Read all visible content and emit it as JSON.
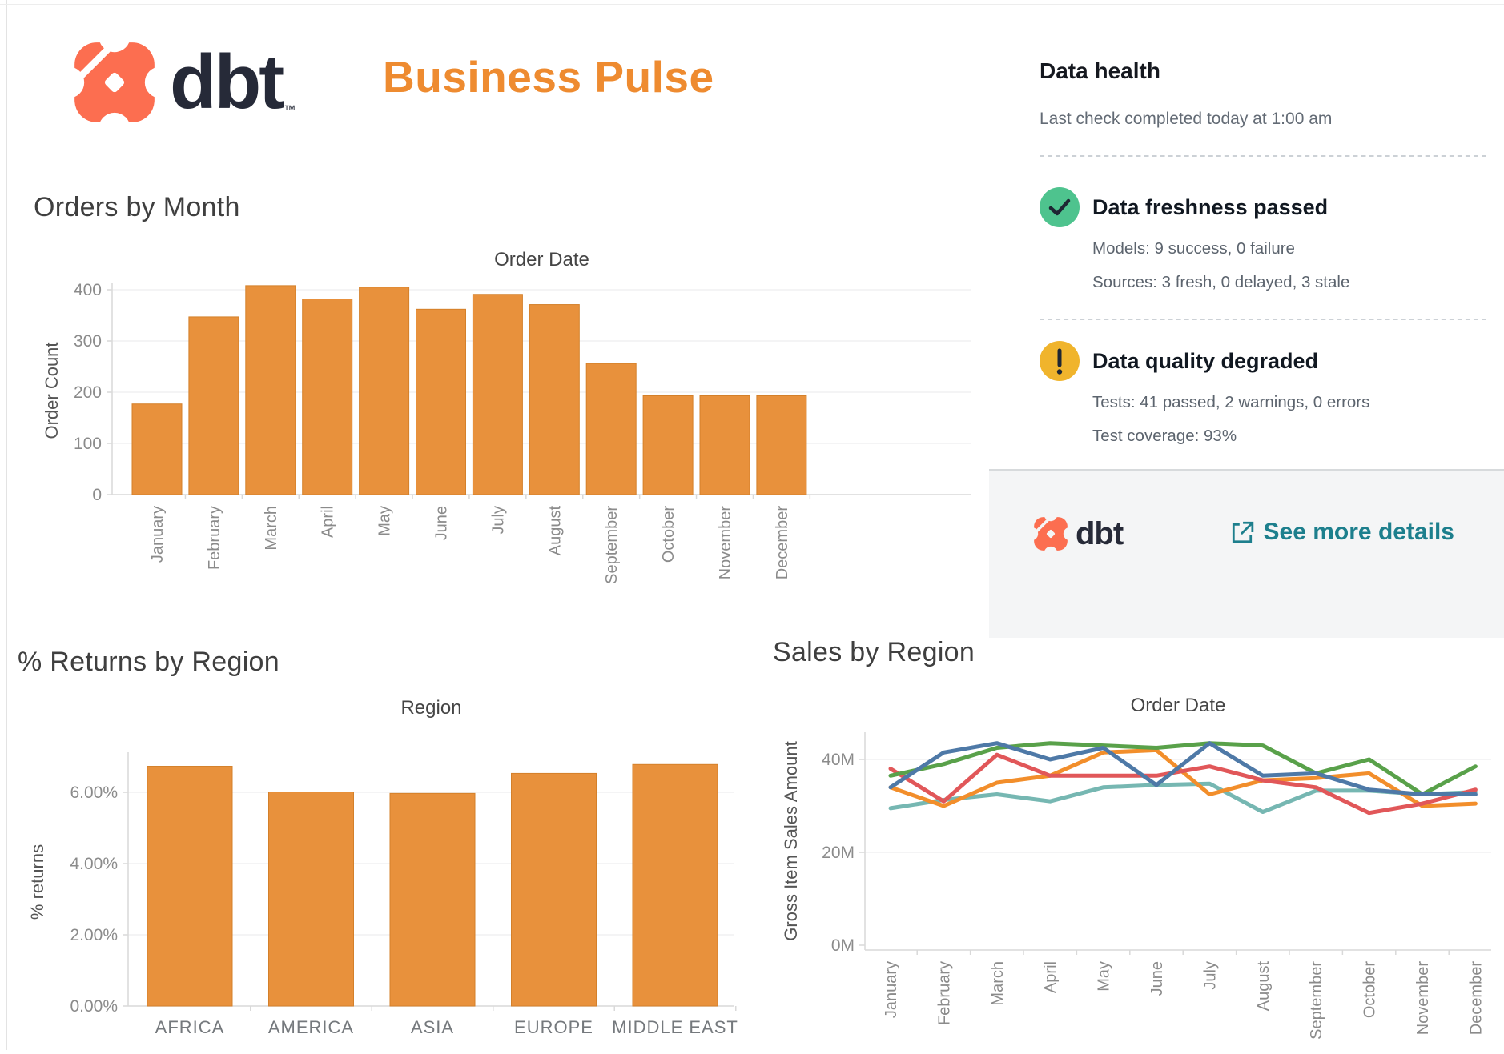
{
  "header": {
    "brand": "dbt",
    "trademark": "™",
    "title": "Business Pulse"
  },
  "data_health": {
    "heading": "Data health",
    "last_check": "Last check completed today at 1:00 am",
    "freshness_status": "Data freshness passed",
    "freshness_models": "Models: 9 success, 0 failure",
    "freshness_sources": "Sources: 3 fresh, 0 delayed, 3 stale",
    "quality_status": "Data quality degraded",
    "quality_tests": "Tests: 41 passed, 2 warnings, 0 errors",
    "quality_coverage": "Test coverage: 93%",
    "footer_brand": "dbt",
    "footer_link": "See more details"
  },
  "colors": {
    "brand_coral": "#FC6E50",
    "brand_navy": "#262A38",
    "accent_orange": "#EE8B30",
    "bar_orange": "#E8913C",
    "bar_stroke": "#D4802A",
    "success_green": "#4EC38E",
    "warning_yellow": "#F0B42C",
    "link_teal": "#1D7F8D",
    "icon_glyph_navy": "#1E2633"
  },
  "chart_data": [
    {
      "type": "bar",
      "title": "Orders by Month",
      "pane_label": "Order Date",
      "xlabel": "",
      "ylabel": "Order Count",
      "categories": [
        "January",
        "February",
        "March",
        "April",
        "May",
        "June",
        "July",
        "August",
        "September",
        "October",
        "November",
        "December"
      ],
      "values": [
        177,
        347,
        408,
        382,
        405,
        362,
        391,
        371,
        256,
        193,
        193,
        193
      ],
      "y_ticks": [
        0,
        100,
        200,
        300,
        400
      ],
      "y_tick_labels": [
        "0",
        "100",
        "200",
        "300",
        "400"
      ],
      "ylim": [
        0,
        412
      ],
      "grid": true,
      "legend_position": "none",
      "bar_color": "#E8913C"
    },
    {
      "type": "bar",
      "title": "% Returns by Region",
      "pane_label": "Region",
      "xlabel": "",
      "ylabel": "% returns",
      "categories": [
        "AFRICA",
        "AMERICA",
        "ASIA",
        "EUROPE",
        "MIDDLE EAST"
      ],
      "values": [
        6.73,
        6.01,
        5.97,
        6.53,
        6.78
      ],
      "y_ticks": [
        0,
        2,
        4,
        6
      ],
      "y_tick_labels": [
        "0.00%",
        "2.00%",
        "4.00%",
        "6.00%"
      ],
      "ylim": [
        0,
        7.1
      ],
      "grid": true,
      "legend_position": "none",
      "bar_color": "#E8913C"
    },
    {
      "type": "line",
      "title": "Sales by Region",
      "pane_label": "Order Date",
      "xlabel": "",
      "ylabel": "Gross Item Sales Amount",
      "x": [
        "January",
        "February",
        "March",
        "April",
        "May",
        "June",
        "July",
        "August",
        "September",
        "October",
        "November",
        "December"
      ],
      "y_ticks": [
        0,
        20,
        40
      ],
      "y_tick_labels": [
        "0M",
        "20M",
        "40M"
      ],
      "ylim": [
        -1,
        46
      ],
      "unit": "M",
      "grid": true,
      "legend_position": "none",
      "series": [
        {
          "name": "series-teal",
          "color": "#76B7B2",
          "values": [
            29.5,
            31.3,
            32.5,
            31,
            34,
            34.5,
            34.8,
            28.7,
            33.3,
            33.3,
            32.5,
            33
          ]
        },
        {
          "name": "series-orange",
          "color": "#F28E2B",
          "values": [
            34,
            30,
            35,
            36.5,
            41.5,
            42,
            32.5,
            35.5,
            36,
            37,
            30,
            30.5
          ]
        },
        {
          "name": "series-red",
          "color": "#E15759",
          "values": [
            38,
            31,
            41,
            36.5,
            36.5,
            36.5,
            38.5,
            35.5,
            34,
            28.5,
            30.5,
            33.5
          ]
        },
        {
          "name": "series-green",
          "color": "#59A14A",
          "values": [
            36.5,
            39,
            42.5,
            43.5,
            43,
            42.5,
            43.5,
            43,
            37,
            40,
            32.5,
            38.5
          ]
        },
        {
          "name": "series-blue",
          "color": "#4E79A7",
          "values": [
            34,
            41.5,
            43.5,
            40,
            42.5,
            34.5,
            43.5,
            36.5,
            37,
            33.5,
            32.5,
            32.5
          ]
        }
      ]
    }
  ]
}
